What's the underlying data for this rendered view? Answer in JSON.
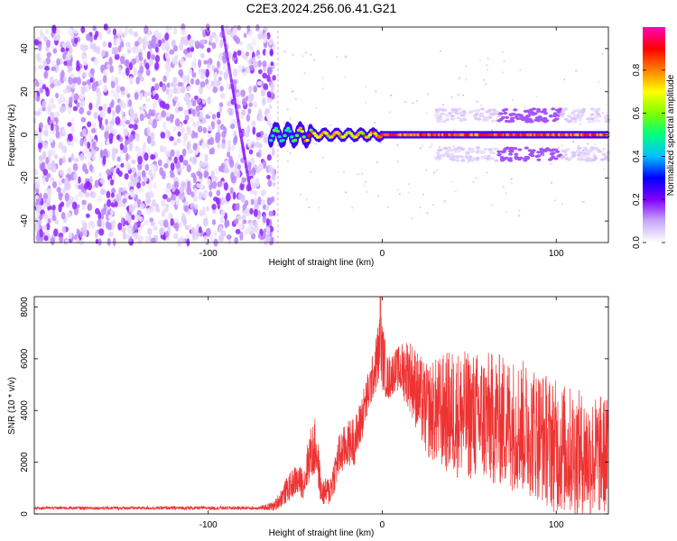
{
  "title": "C2E3.2024.256.06.41.G21",
  "chart_data": [
    {
      "type": "heatmap",
      "name": "spectrogram",
      "xlabel": "Height of straight line (km)",
      "ylabel": "Frequency (Hz)",
      "xlim": [
        -200,
        130
      ],
      "ylim": [
        -50,
        50
      ],
      "xticks": [
        -100,
        0,
        100
      ],
      "xtick_labels": [
        "-100",
        "0",
        "100"
      ],
      "yticks": [
        -40,
        -20,
        0,
        20,
        40
      ],
      "ytick_labels": [
        "-40",
        "-20",
        "0",
        "20",
        "40"
      ],
      "colorbar": {
        "label": "Normalized spectral amplitude",
        "range": [
          0,
          1
        ],
        "ticks": [
          0.0,
          0.2,
          0.4,
          0.6,
          0.8
        ],
        "tick_labels": [
          "0.0",
          "0.2",
          "0.4",
          "0.6",
          "0.8"
        ],
        "colors": [
          "#ffffff",
          "#c8a8f8",
          "#8000ff",
          "#0000ff",
          "#00c0ff",
          "#00ff80",
          "#80ff00",
          "#ffff00",
          "#ff8000",
          "#ff0000",
          "#ff00c0"
        ]
      },
      "features": [
        {
          "description": "broadband noise",
          "x_range": [
            -200,
            -62
          ],
          "freq_range": [
            -50,
            50
          ],
          "level": 0.12
        },
        {
          "description": "dispersive streak",
          "x_from": -92,
          "x_to": -76,
          "freq_from": 50,
          "freq_to": -25,
          "level": 0.15
        },
        {
          "description": "carrier line",
          "x_range": [
            -60,
            130
          ],
          "freq": 0,
          "level": 0.85
        },
        {
          "description": "sideband upper",
          "x_range": [
            30,
            130
          ],
          "freq": 9,
          "level": 0.1
        },
        {
          "description": "sideband lower",
          "x_range": [
            30,
            130
          ],
          "freq": -9,
          "level": 0.1
        }
      ]
    },
    {
      "type": "line",
      "name": "snr",
      "xlabel": "Height of straight line (km)",
      "ylabel": "SNR (10 * v/v)",
      "xlim": [
        -200,
        130
      ],
      "ylim": [
        0,
        8400
      ],
      "xticks": [
        -100,
        0,
        100
      ],
      "xtick_labels": [
        "-100",
        "0",
        "100"
      ],
      "yticks": [
        0,
        2000,
        4000,
        6000,
        8000
      ],
      "ytick_labels": [
        "0",
        "2000",
        "4000",
        "6000",
        "8000"
      ],
      "color": "#ee3333",
      "envelope": {
        "x": [
          -200,
          -70,
          -62,
          -55,
          -50,
          -45,
          -42,
          -38,
          -35,
          -30,
          -25,
          -20,
          -15,
          -10,
          -5,
          -1,
          3,
          8,
          15,
          25,
          40,
          50,
          60,
          70,
          80,
          90,
          100,
          110,
          120,
          130
        ],
        "mean": [
          230,
          230,
          300,
          900,
          1300,
          1200,
          2200,
          2600,
          800,
          900,
          2200,
          2700,
          2900,
          4200,
          5400,
          6500,
          5200,
          5600,
          5500,
          4000,
          3900,
          3800,
          3700,
          3600,
          3400,
          3100,
          2600,
          2400,
          2200,
          2300
        ],
        "amp": [
          60,
          70,
          200,
          500,
          600,
          600,
          1000,
          1200,
          500,
          600,
          900,
          900,
          1000,
          900,
          900,
          1500,
          900,
          800,
          1400,
          1800,
          2500,
          2500,
          2600,
          2600,
          2600,
          2600,
          2600,
          2500,
          2400,
          2300
        ]
      },
      "peak": {
        "x": -1,
        "y": 8400
      }
    }
  ]
}
